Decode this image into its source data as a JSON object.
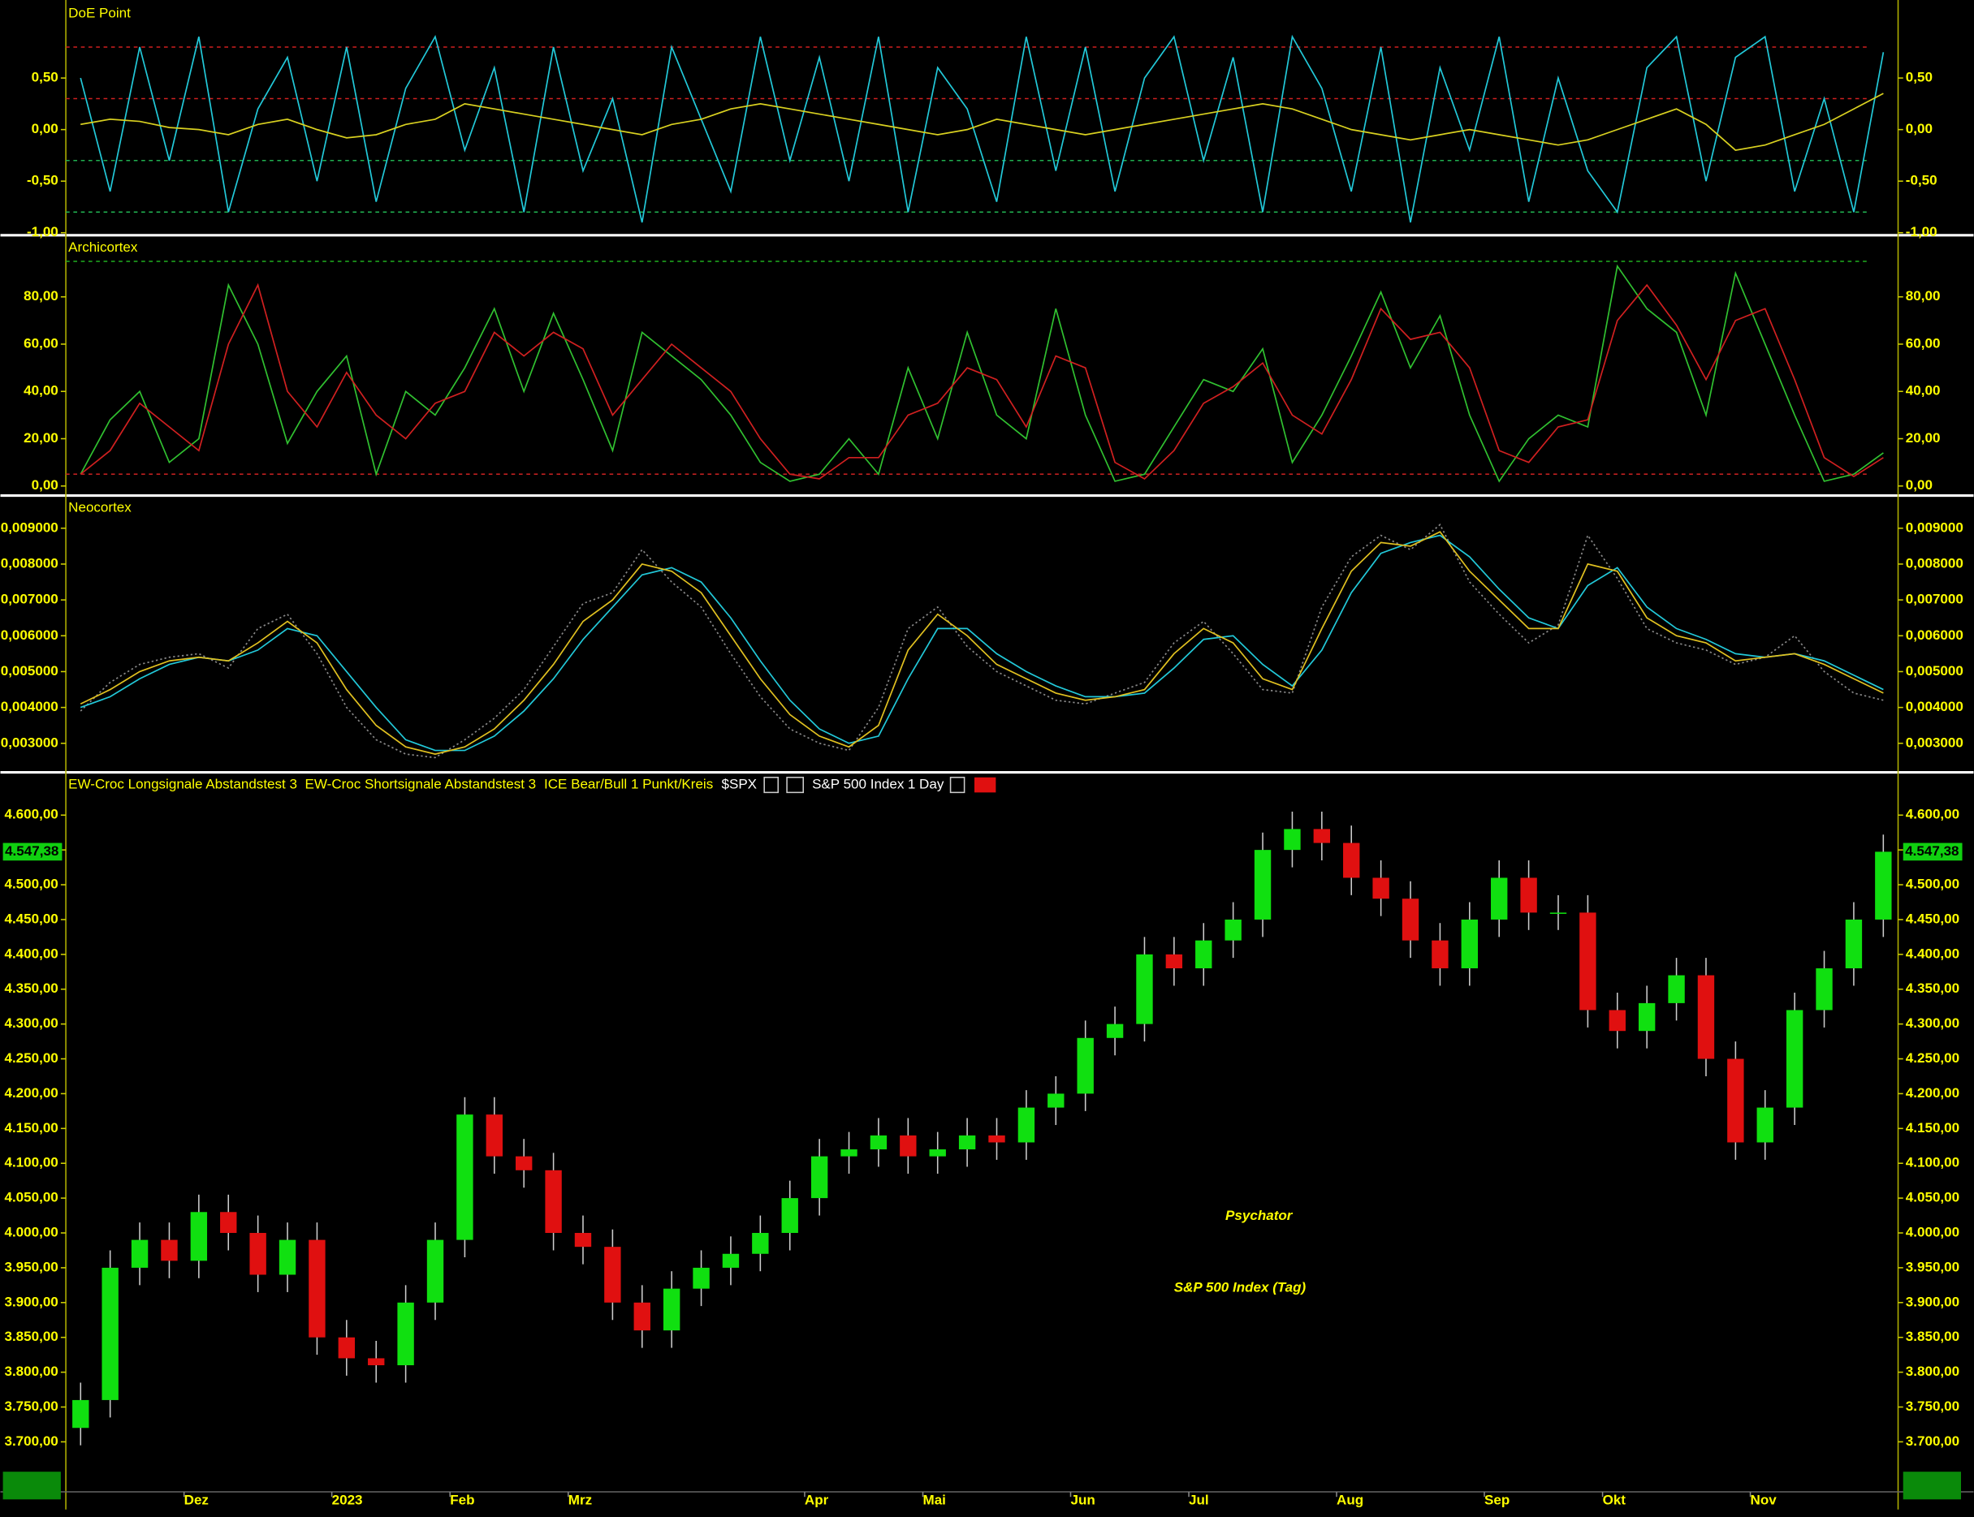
{
  "chart_data": [
    {
      "type": "line",
      "title": "DoE Point",
      "ylim": [
        -1.0,
        1.22
      ],
      "yticks": [
        {
          "value": -1,
          "label": "-1,00"
        },
        {
          "value": -0.5,
          "label": "-0,50"
        },
        {
          "value": 0,
          "label": "0,00"
        },
        {
          "value": 0.5,
          "label": "0,50"
        }
      ],
      "reference_lines": [
        {
          "value": 0.8,
          "color": "#d02020"
        },
        {
          "value": 0.3,
          "color": "#d02020"
        },
        {
          "value": -0.3,
          "color": "#20b050"
        },
        {
          "value": -0.8,
          "color": "#20b050"
        }
      ],
      "series": [
        {
          "color": "#22c8d8",
          "values": [
            0.5,
            -0.6,
            0.8,
            -0.3,
            0.9,
            -0.8,
            0.2,
            0.7,
            -0.5,
            0.8,
            -0.7,
            0.4,
            0.9,
            -0.2,
            0.6,
            -0.8,
            0.8,
            -0.4,
            0.3,
            -0.9,
            0.8,
            0.1,
            -0.6,
            0.9,
            -0.3,
            0.7,
            -0.5,
            0.9,
            -0.8,
            0.6,
            0.2,
            -0.7,
            0.9,
            -0.4,
            0.8,
            -0.6,
            0.5,
            0.9,
            -0.3,
            0.7,
            -0.8,
            0.9,
            0.4,
            -0.6,
            0.8,
            -0.9,
            0.6,
            -0.2,
            0.9,
            -0.7,
            0.5,
            -0.4,
            -0.8,
            0.6,
            0.9,
            -0.5,
            0.7,
            0.9,
            -0.6,
            0.3,
            -0.8,
            0.75
          ]
        },
        {
          "color": "#d8d020",
          "values": [
            0.05,
            0.1,
            0.08,
            0.02,
            0.0,
            -0.05,
            0.05,
            0.1,
            0.0,
            -0.08,
            -0.05,
            0.05,
            0.1,
            0.25,
            0.2,
            0.15,
            0.1,
            0.05,
            0.0,
            -0.05,
            0.05,
            0.1,
            0.2,
            0.25,
            0.2,
            0.15,
            0.1,
            0.05,
            0.0,
            -0.05,
            0.0,
            0.1,
            0.05,
            0.0,
            -0.05,
            0.0,
            0.05,
            0.1,
            0.15,
            0.2,
            0.25,
            0.2,
            0.1,
            0.0,
            -0.05,
            -0.1,
            -0.05,
            0.0,
            -0.05,
            -0.1,
            -0.15,
            -0.1,
            0.0,
            0.1,
            0.2,
            0.05,
            -0.2,
            -0.15,
            -0.05,
            0.05,
            0.2,
            0.35
          ]
        }
      ]
    },
    {
      "type": "line",
      "title": "Archicortex",
      "ylim": [
        -3,
        105
      ],
      "yticks": [
        {
          "value": 0,
          "label": "0,00"
        },
        {
          "value": 20,
          "label": "20,00"
        },
        {
          "value": 40,
          "label": "40,00"
        },
        {
          "value": 60,
          "label": "60,00"
        },
        {
          "value": 80,
          "label": "80,00"
        }
      ],
      "reference_lines": [
        {
          "value": 95,
          "color": "#20b020"
        },
        {
          "value": 5,
          "color": "#c02020"
        }
      ],
      "series": [
        {
          "color": "#30c030",
          "values": [
            5,
            28,
            40,
            10,
            20,
            85,
            60,
            18,
            40,
            55,
            5,
            40,
            30,
            50,
            75,
            40,
            73,
            45,
            15,
            65,
            55,
            45,
            30,
            10,
            2,
            5,
            20,
            5,
            50,
            20,
            65,
            30,
            20,
            75,
            30,
            2,
            5,
            25,
            45,
            40,
            58,
            10,
            30,
            55,
            82,
            50,
            72,
            30,
            2,
            20,
            30,
            25,
            93,
            75,
            65,
            30,
            90,
            60,
            30,
            2,
            5,
            14
          ]
        },
        {
          "color": "#d02020",
          "values": [
            5,
            15,
            35,
            25,
            15,
            60,
            85,
            40,
            25,
            48,
            30,
            20,
            35,
            40,
            65,
            55,
            65,
            58,
            30,
            45,
            60,
            50,
            40,
            20,
            5,
            3,
            12,
            12,
            30,
            35,
            50,
            45,
            25,
            55,
            50,
            10,
            3,
            15,
            35,
            42,
            52,
            30,
            22,
            45,
            75,
            62,
            65,
            50,
            15,
            10,
            25,
            28,
            70,
            85,
            68,
            45,
            70,
            75,
            45,
            12,
            4,
            12
          ]
        }
      ]
    },
    {
      "type": "line",
      "title": "Neocortex",
      "ylim": [
        0.00226,
        0.00984
      ],
      "yticks": [
        {
          "value": 0.003,
          "label": "0,003000"
        },
        {
          "value": 0.004,
          "label": "0,004000"
        },
        {
          "value": 0.005,
          "label": "0,005000"
        },
        {
          "value": 0.006,
          "label": "0,006000"
        },
        {
          "value": 0.007,
          "label": "0,007000"
        },
        {
          "value": 0.008,
          "label": "0,008000"
        },
        {
          "value": 0.009,
          "label": "0,009000"
        }
      ],
      "reference_lines": [],
      "series": [
        {
          "color": "#888888",
          "style": "dotted",
          "values": [
            0.0039,
            0.0047,
            0.0052,
            0.0054,
            0.0055,
            0.0051,
            0.0062,
            0.0066,
            0.0055,
            0.004,
            0.0031,
            0.0027,
            0.0026,
            0.0031,
            0.0037,
            0.0045,
            0.0057,
            0.0069,
            0.0072,
            0.0084,
            0.0075,
            0.0068,
            0.0055,
            0.0043,
            0.0034,
            0.003,
            0.0028,
            0.004,
            0.0062,
            0.0068,
            0.0057,
            0.005,
            0.0046,
            0.0042,
            0.0041,
            0.0044,
            0.0047,
            0.0058,
            0.0064,
            0.0055,
            0.0045,
            0.0044,
            0.0068,
            0.0082,
            0.0088,
            0.0084,
            0.0091,
            0.0075,
            0.0066,
            0.0058,
            0.0063,
            0.0088,
            0.0076,
            0.0062,
            0.0058,
            0.0056,
            0.0052,
            0.0054,
            0.006,
            0.005,
            0.0044,
            0.0042
          ]
        },
        {
          "color": "#22c8d8",
          "values": [
            0.004,
            0.0043,
            0.0048,
            0.0052,
            0.0054,
            0.0053,
            0.0056,
            0.0062,
            0.006,
            0.005,
            0.004,
            0.0031,
            0.0028,
            0.0028,
            0.0032,
            0.0039,
            0.0048,
            0.0059,
            0.0068,
            0.0077,
            0.0079,
            0.0075,
            0.0065,
            0.0053,
            0.0042,
            0.0034,
            0.003,
            0.0032,
            0.0048,
            0.0062,
            0.0062,
            0.0055,
            0.005,
            0.0046,
            0.0043,
            0.0043,
            0.0044,
            0.0051,
            0.0059,
            0.006,
            0.0052,
            0.0046,
            0.0056,
            0.0072,
            0.0083,
            0.0086,
            0.0088,
            0.0082,
            0.0073,
            0.0065,
            0.0062,
            0.0074,
            0.0079,
            0.0068,
            0.0062,
            0.0059,
            0.0055,
            0.0054,
            0.0055,
            0.0053,
            0.0049,
            0.0045
          ]
        },
        {
          "color": "#e0c020",
          "values": [
            0.0041,
            0.0045,
            0.005,
            0.0053,
            0.0054,
            0.0053,
            0.0058,
            0.0064,
            0.0058,
            0.0045,
            0.0035,
            0.0029,
            0.0027,
            0.0029,
            0.0034,
            0.0042,
            0.0052,
            0.0064,
            0.007,
            0.008,
            0.0078,
            0.0072,
            0.006,
            0.0048,
            0.0038,
            0.0032,
            0.0029,
            0.0035,
            0.0056,
            0.0066,
            0.006,
            0.0052,
            0.0048,
            0.0044,
            0.0042,
            0.0043,
            0.0045,
            0.0055,
            0.0062,
            0.0058,
            0.0048,
            0.0045,
            0.0062,
            0.0078,
            0.0086,
            0.0085,
            0.0089,
            0.0078,
            0.007,
            0.0062,
            0.0062,
            0.008,
            0.0078,
            0.0065,
            0.006,
            0.0058,
            0.0053,
            0.0054,
            0.0055,
            0.0052,
            0.0048,
            0.0044
          ]
        }
      ]
    },
    {
      "type": "candlestick",
      "header_items": [
        "EW-Croc Longsignale Abstandstest 3",
        "EW-Croc Shortsignale Abstandstest 3",
        "ICE Bear/Bull 1 Punkt/Kreis",
        "$SPX",
        "S&P 500 Index",
        "1 Day"
      ],
      "annotations": [
        "Psychator",
        "S&P 500 Index (Tag)"
      ],
      "last_price": {
        "value": 4547.38,
        "label": "4.547,38"
      },
      "up_color": "#10e010",
      "down_color": "#e01010",
      "ylim": [
        3630,
        4656
      ],
      "yticks": [
        {
          "value": 3700,
          "label": "3.700,00"
        },
        {
          "value": 3750,
          "label": "3.750,00"
        },
        {
          "value": 3800,
          "label": "3.800,00"
        },
        {
          "value": 3850,
          "label": "3.850,00"
        },
        {
          "value": 3900,
          "label": "3.900,00"
        },
        {
          "value": 3950,
          "label": "3.950,00"
        },
        {
          "value": 4000,
          "label": "4.000,00"
        },
        {
          "value": 4050,
          "label": "4.050,00"
        },
        {
          "value": 4100,
          "label": "4.100,00"
        },
        {
          "value": 4150,
          "label": "4.150,00"
        },
        {
          "value": 4200,
          "label": "4.200,00"
        },
        {
          "value": 4250,
          "label": "4.250,00"
        },
        {
          "value": 4300,
          "label": "4.300,00"
        },
        {
          "value": 4350,
          "label": "4.350,00"
        },
        {
          "value": 4400,
          "label": "4.400,00"
        },
        {
          "value": 4450,
          "label": "4.450,00"
        },
        {
          "value": 4500,
          "label": "4.500,00"
        },
        {
          "value": 4550,
          "label": "4.550,00"
        },
        {
          "value": 4600,
          "label": "4.600,00"
        }
      ],
      "categories": [
        null,
        null,
        null,
        null,
        "Dez",
        null,
        null,
        null,
        null,
        "2023",
        null,
        null,
        null,
        "Feb",
        null,
        null,
        null,
        "Mrz",
        null,
        null,
        null,
        null,
        null,
        null,
        null,
        "Apr",
        null,
        null,
        null,
        "Mai",
        null,
        null,
        null,
        null,
        "Jun",
        null,
        null,
        null,
        "Jul",
        null,
        null,
        null,
        null,
        "Aug",
        null,
        null,
        null,
        null,
        "Sep",
        null,
        null,
        null,
        "Okt",
        null,
        null,
        null,
        null,
        "Nov",
        null,
        null,
        null,
        null
      ],
      "open": [
        3720,
        3760,
        3950,
        3990,
        3960,
        4030,
        4000,
        3940,
        3990,
        3850,
        3820,
        3810,
        3900,
        3990,
        4170,
        4110,
        4090,
        4000,
        3980,
        3900,
        3860,
        3920,
        3950,
        3970,
        4000,
        4050,
        4110,
        4120,
        4140,
        4110,
        4120,
        4140,
        4130,
        4180,
        4200,
        4280,
        4300,
        4400,
        4380,
        4420,
        4450,
        4550,
        4580,
        4560,
        4510,
        4480,
        4420,
        4380,
        4450,
        4510,
        4460,
        4460,
        4320,
        4290,
        4330,
        4370,
        4250,
        4130,
        4180,
        4320,
        4380,
        4450
      ],
      "high": [
        3785,
        3975,
        4015,
        4015,
        4055,
        4055,
        4025,
        4015,
        4015,
        3875,
        3845,
        3925,
        4015,
        4195,
        4195,
        4135,
        4115,
        4025,
        4005,
        3925,
        3945,
        3975,
        3995,
        4025,
        4075,
        4135,
        4145,
        4165,
        4165,
        4145,
        4165,
        4165,
        4205,
        4225,
        4305,
        4325,
        4425,
        4425,
        4445,
        4475,
        4575,
        4605,
        4605,
        4585,
        4535,
        4505,
        4445,
        4475,
        4535,
        4535,
        4485,
        4485,
        4345,
        4355,
        4395,
        4395,
        4275,
        4205,
        4345,
        4405,
        4475,
        4572
      ],
      "low": [
        3695,
        3735,
        3925,
        3935,
        3935,
        3975,
        3915,
        3915,
        3825,
        3795,
        3785,
        3785,
        3875,
        3965,
        4085,
        4065,
        3975,
        3955,
        3875,
        3835,
        3835,
        3895,
        3925,
        3945,
        3975,
        4025,
        4085,
        4095,
        4085,
        4085,
        4095,
        4105,
        4105,
        4155,
        4175,
        4255,
        4275,
        4355,
        4355,
        4395,
        4425,
        4525,
        4535,
        4485,
        4455,
        4395,
        4355,
        4355,
        4425,
        4435,
        4435,
        4295,
        4265,
        4265,
        4305,
        4225,
        4105,
        4105,
        4155,
        4295,
        4355,
        4425
      ],
      "close": [
        3760,
        3950,
        3990,
        3960,
        4030,
        4000,
        3940,
        3990,
        3850,
        3820,
        3810,
        3900,
        3990,
        4170,
        4110,
        4090,
        4000,
        3980,
        3900,
        3860,
        3920,
        3950,
        3970,
        4000,
        4050,
        4110,
        4120,
        4140,
        4110,
        4120,
        4140,
        4130,
        4180,
        4200,
        4280,
        4300,
        4400,
        4380,
        4420,
        4450,
        4550,
        4580,
        4560,
        4510,
        4480,
        4420,
        4380,
        4450,
        4510,
        4460,
        4460,
        4320,
        4290,
        4330,
        4370,
        4250,
        4130,
        4180,
        4320,
        4380,
        4450,
        4547.38
      ]
    }
  ]
}
